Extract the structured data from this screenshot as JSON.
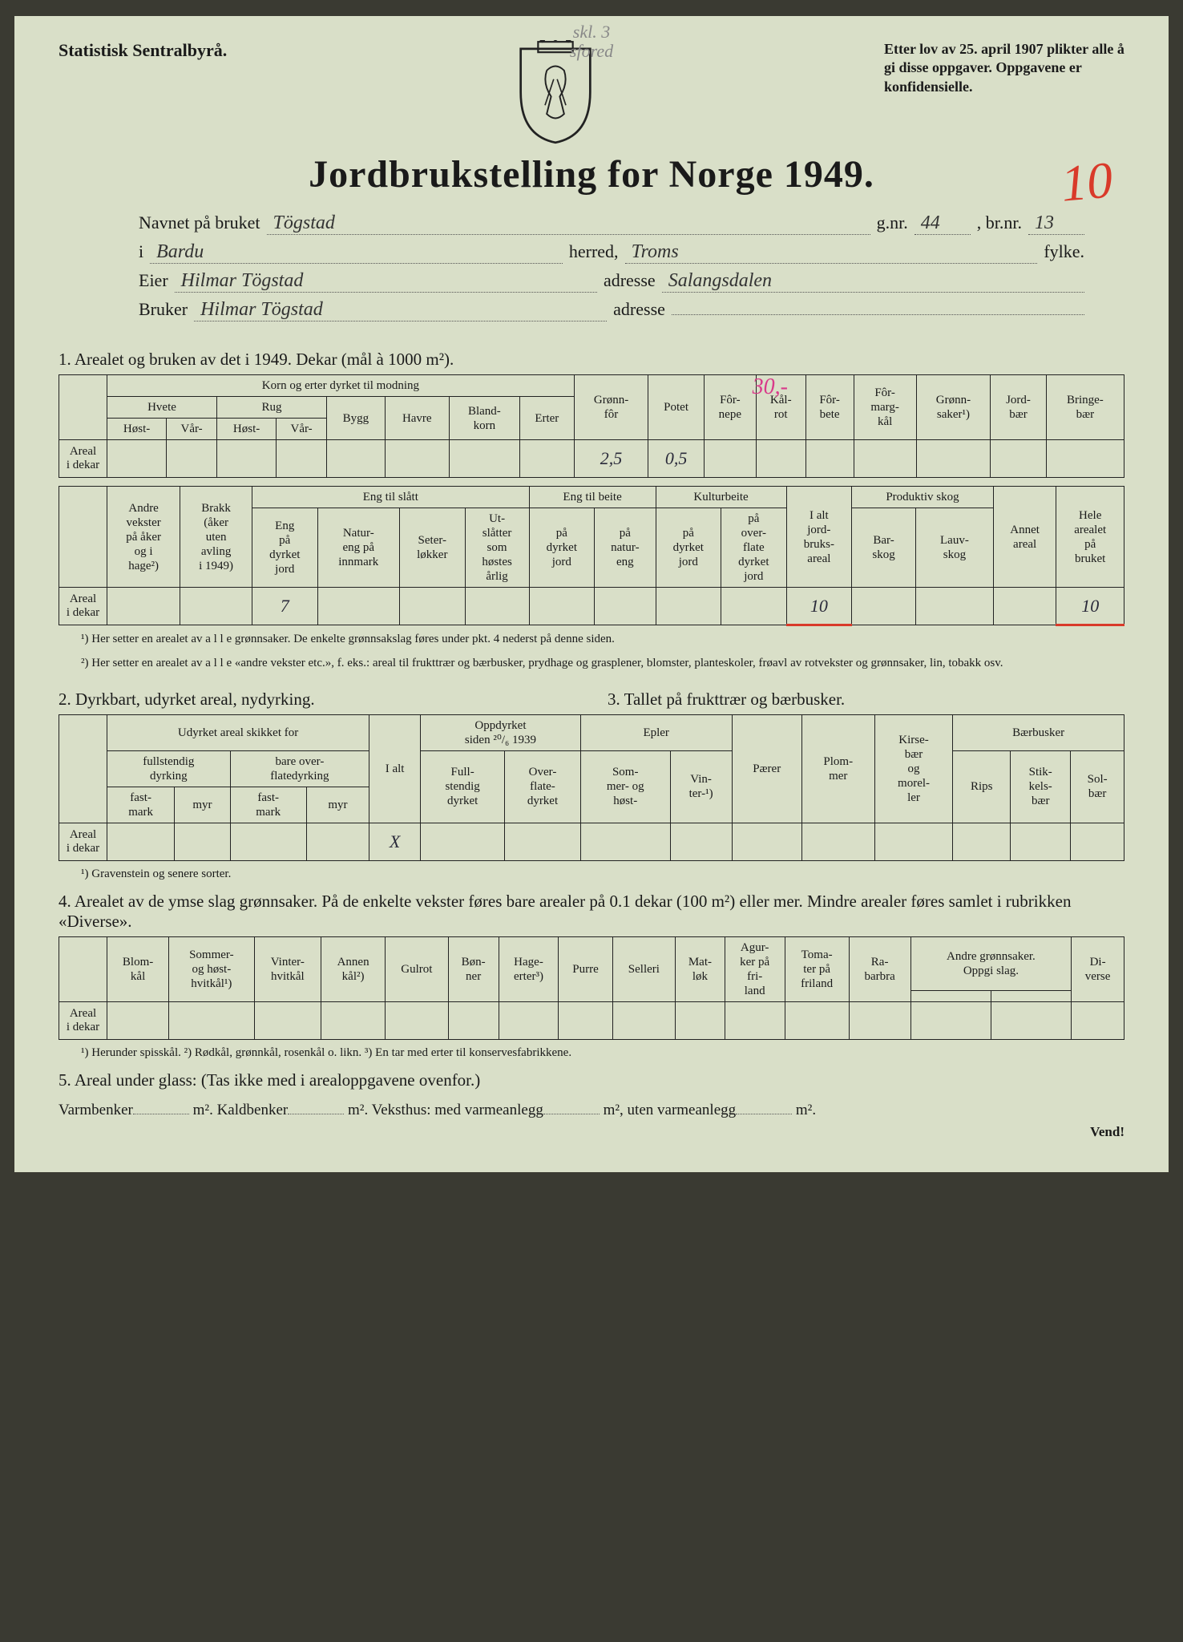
{
  "pencil_top": "skl. 3\nsfored",
  "agency": "Statistisk Sentralbyrå.",
  "law_text": "Etter lov av 25. april 1907 plikter alle å gi disse oppgaver. Oppgavene er konfidensielle.",
  "red_ten": "10",
  "title": "Jordbrukstelling for Norge 1949.",
  "meta": {
    "bruk_label": "Navnet på bruket",
    "bruk": "Tögstad",
    "gnr_label": "g.nr.",
    "gnr": "44",
    "brnr_label": ", br.nr.",
    "brnr": "13",
    "i_label": "i",
    "herred_label": "herred,",
    "herred": "Bardu",
    "fylke_label": "fylke.",
    "fylke": "Troms",
    "eier_label": "Eier",
    "eier": "Hilmar Tögstad",
    "adresse_label": "adresse",
    "adresse1": "Salangsdalen",
    "bruker_label": "Bruker",
    "bruker": "Hilmar Tögstad",
    "adresse2": ""
  },
  "s1": {
    "title": "1. Arealet og bruken av det i 1949. Dekar (mål à 1000 m²).",
    "red30": "30,-",
    "row_label": "Areal\ni dekar",
    "h": {
      "korn": "Korn og erter dyrket til modning",
      "hvete": "Hvete",
      "rug": "Rug",
      "bygg": "Bygg",
      "havre": "Havre",
      "blandkorn": "Bland-\nkorn",
      "erter": "Erter",
      "host": "Høst-",
      "var": "Vår-",
      "gronnfor": "Grønn-\nfôr",
      "potet": "Potet",
      "fornepe": "Fôr-\nnepe",
      "kalrot": "Kål-\nrot",
      "forbete": "Fôr-\nbete",
      "formargkal": "Fôr-\nmarg-\nkål",
      "gronnsaker": "Grønn-\nsaker¹)",
      "jordbaer": "Jord-\nbær",
      "bringebaer": "Bringe-\nbær"
    },
    "v": {
      "gronnfor": "2,5",
      "potet": "0,5"
    }
  },
  "s1b": {
    "row_label": "Areal\ni dekar",
    "h": {
      "andre": "Andre\nvekster\npå åker\nog i\nhage²)",
      "brakk": "Brakk\n(åker\nuten\navling\ni 1949)",
      "engslott": "Eng til slått",
      "engdyrket": "Eng\npå\ndyrket\njord",
      "natureng": "Natur-\neng på\ninnmark",
      "seter": "Seter-\nløkker",
      "utslatter": "Ut-\nslåtter\nsom\nhøstes\nårlig",
      "engbeite": "Eng til beite",
      "beitedyr": "på\ndyrket\njord",
      "beitenatur": "på\nnatur-\neng",
      "kulturbeite": "Kulturbeite",
      "kbdyrket": "på\ndyrket\njord",
      "kboverfl": "på\nover-\nflate\ndyrket\njord",
      "ialt": "I alt\njord-\nbruks-\nareal",
      "prodskog": "Produktiv skog",
      "barskog": "Bar-\nskog",
      "lauvskog": "Lauv-\nskog",
      "annet": "Annet\nareal",
      "hele": "Hele\narealet\npå\nbruket"
    },
    "v": {
      "engdyrket": "7",
      "ialt": "10",
      "hele": "10"
    }
  },
  "fn1": "¹) Her setter en arealet av a l l e grønnsaker. De enkelte grønnsakslag føres under pkt. 4 nederst på denne siden.",
  "fn2": "²) Her setter en arealet av a l l e «andre vekster etc.», f. eks.: areal til frukttrær og bærbusker, prydhage og grasplener, blomster, planteskoler, frøavl av rotvekster og grønnsaker, lin, tobakk osv.",
  "s2": {
    "title": "2. Dyrkbart, udyrket areal, nydyrking."
  },
  "s3": {
    "title": "3. Tallet på frukttrær og bærbusker."
  },
  "t23": {
    "row_label": "Areal\ni dekar",
    "h": {
      "udyrket": "Udyrket areal skikket for",
      "fullst": "fullstendig\ndyrking",
      "overfl": "bare over-\nflatedyrking",
      "fastmark": "fast-\nmark",
      "myr": "myr",
      "ialt": "I alt",
      "oppdyrket": "Oppdyrket\nsiden ²⁰/₆ 1939",
      "fulldyr": "Full-\nstendig\ndyrket",
      "overfldyr": "Over-\nflate-\ndyrket",
      "epler": "Epler",
      "sommer": "Som-\nmer- og\nhøst-",
      "vinter": "Vin-\nter-¹)",
      "paerer": "Pærer",
      "plommer": "Plom-\nmer",
      "kirsebaer": "Kirse-\nbær\nog\nmorel-\nler",
      "baerbusker": "Bærbusker",
      "rips": "Rips",
      "stikkels": "Stik-\nkels-\nbær",
      "solbaer": "Sol-\nbær"
    },
    "v": {
      "ialt": "X"
    }
  },
  "fn3": "¹) Gravenstein og senere sorter.",
  "s4": {
    "title": "4. Arealet av de ymse slag grønnsaker. På de enkelte vekster føres bare arealer på 0.1 dekar (100 m²) eller mer. Mindre arealer føres samlet i rubrikken «Diverse».",
    "row_label": "Areal\ni dekar",
    "h": {
      "blomkal": "Blom-\nkål",
      "sommerk": "Sommer-\nog høst-\nhvitkål¹)",
      "vinterk": "Vinter-\nhvitkål",
      "annenkal": "Annen\nkål²)",
      "gulrot": "Gulrot",
      "bonner": "Bøn-\nner",
      "hageerter": "Hage-\nerter³)",
      "purre": "Purre",
      "selleri": "Selleri",
      "matlok": "Mat-\nløk",
      "agurker": "Agur-\nker på\nfri-\nland",
      "tomater": "Toma-\nter på\nfriland",
      "rabarbra": "Ra-\nbarbra",
      "andre": "Andre grønnsaker.\nOppgi slag.",
      "diverse": "Di-\nverse"
    }
  },
  "fn4": "¹) Herunder spisskål.   ²) Rødkål, grønnkål, rosenkål o. likn.   ³) En tar med erter til konservesfabrikkene.",
  "s5": {
    "title": "5. Areal under glass:  (Tas ikke med i arealoppgavene ovenfor.)",
    "line_a": "Varmbenker",
    "line_b": "m².  Kaldbenker",
    "line_c": "m².  Veksthus: med varmeanlegg",
    "line_d": "m², uten varmeanlegg",
    "line_e": "m²."
  },
  "vend": "Vend!"
}
